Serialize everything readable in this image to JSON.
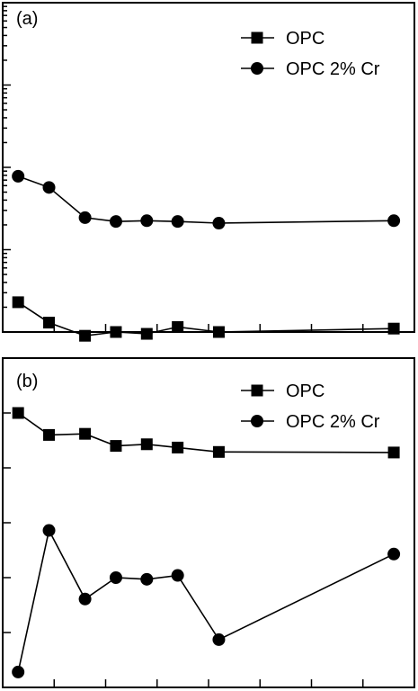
{
  "chart_data": [
    {
      "type": "line",
      "panel_label": "(a)",
      "y_scale": "log",
      "x": [
        0.3,
        0.9,
        1.6,
        2.2,
        2.8,
        3.4,
        4.2,
        7.6
      ],
      "xlim": [
        0,
        8
      ],
      "ylim_log10": [
        -1,
        3
      ],
      "grid": false,
      "legend_position": "top-right",
      "series": [
        {
          "name": "OPC",
          "marker": "square",
          "values": [
            0.23,
            0.13,
            0.09,
            0.1,
            0.095,
            0.115,
            0.1,
            0.11
          ]
        },
        {
          "name": "OPC 2% Cr",
          "marker": "circle",
          "values": [
            7.8,
            5.7,
            2.45,
            2.2,
            2.25,
            2.2,
            2.1,
            2.25
          ]
        }
      ]
    },
    {
      "type": "line",
      "panel_label": "(b)",
      "y_scale": "linear",
      "x": [
        0.3,
        0.9,
        1.6,
        2.2,
        2.8,
        3.4,
        4.2,
        7.6
      ],
      "xlim": [
        0,
        8
      ],
      "ylim": [
        0,
        6
      ],
      "grid": false,
      "legend_position": "top-right",
      "series": [
        {
          "name": "OPC",
          "marker": "square",
          "values": [
            5.0,
            4.6,
            4.62,
            4.4,
            4.43,
            4.37,
            4.29,
            4.28
          ]
        },
        {
          "name": "OPC 2% Cr",
          "marker": "circle",
          "values": [
            0.28,
            2.86,
            1.61,
            2.0,
            1.97,
            2.04,
            0.87,
            2.43
          ]
        }
      ]
    }
  ]
}
